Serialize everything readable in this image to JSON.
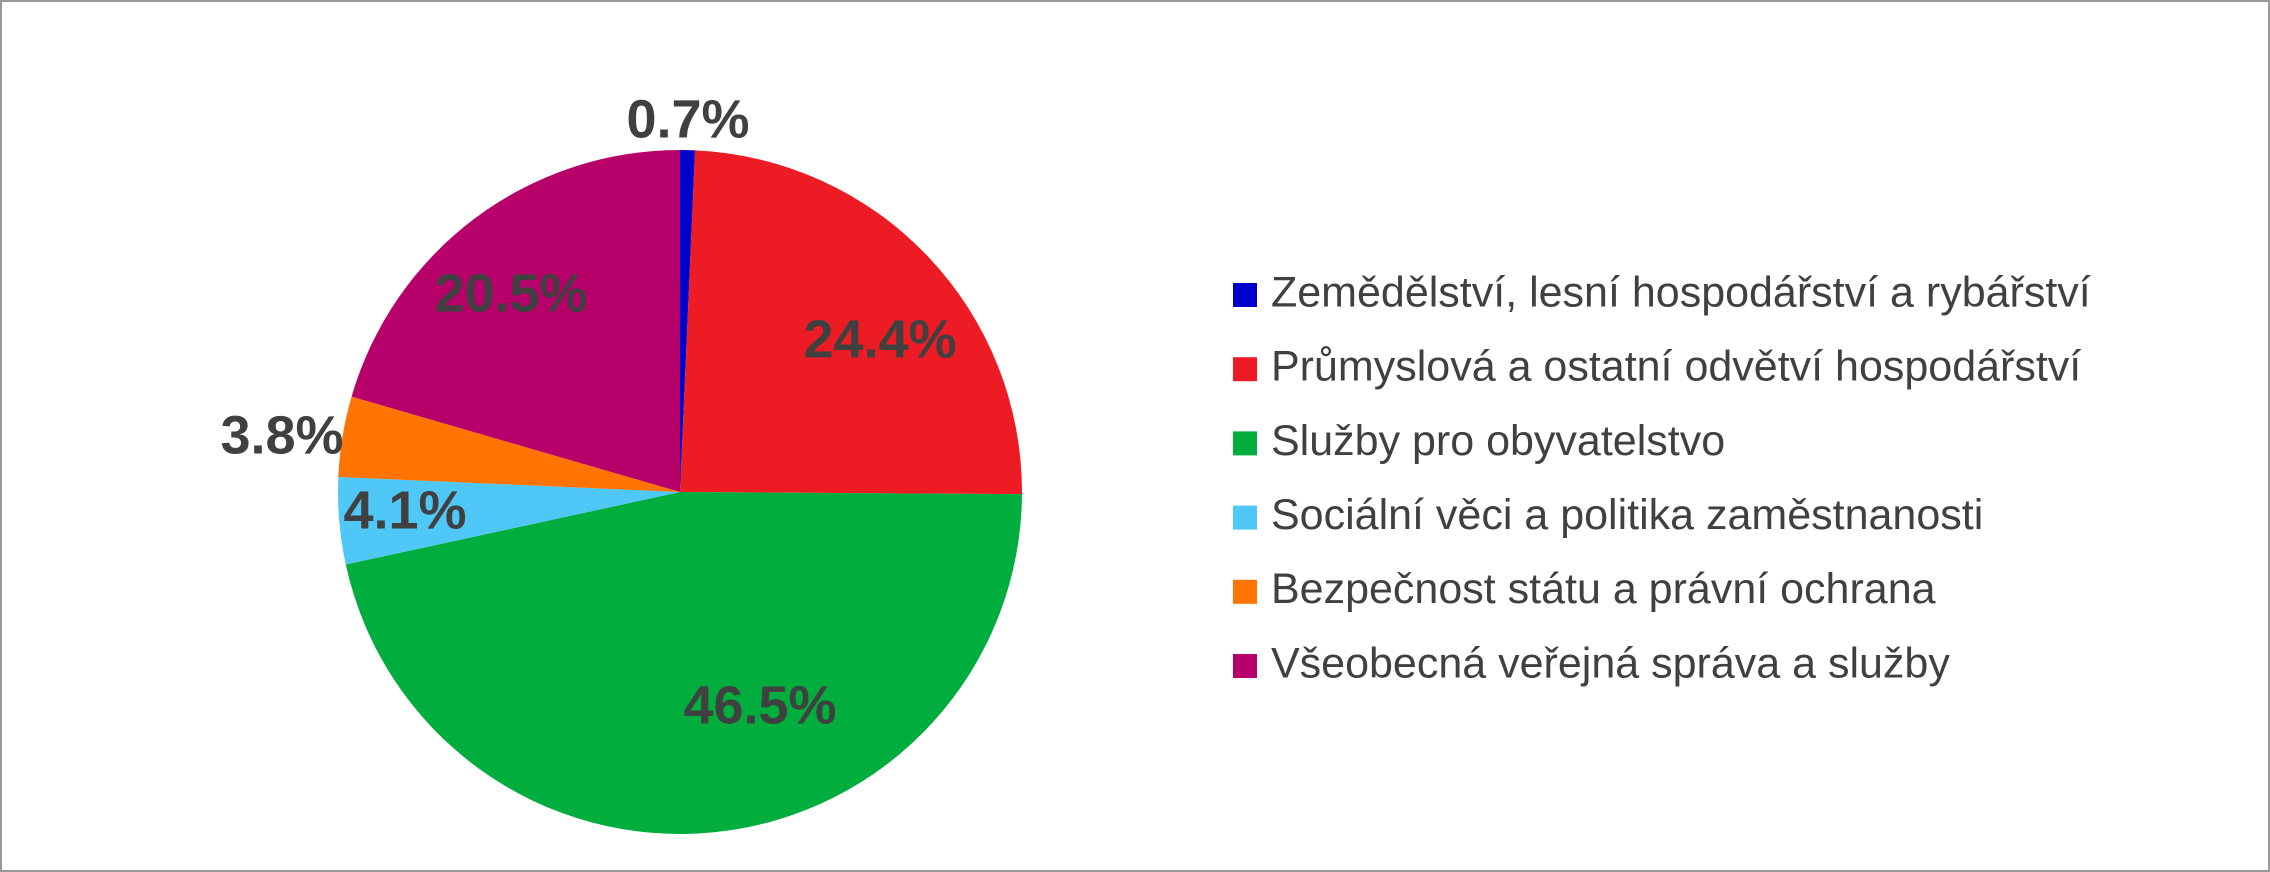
{
  "chart_data": {
    "type": "pie",
    "categories": [
      "Zemědělství, lesní hospodářství a rybářství",
      "Průmyslová a ostatní odvětví hospodářství",
      "Služby pro obyvatelstvo",
      "Sociální věci a politika zaměstnanosti",
      "Bezpečnost státu a právní ochrana",
      "Všeobecná veřejná správa a služby"
    ],
    "values": [
      0.7,
      24.4,
      46.5,
      4.1,
      3.8,
      20.5
    ],
    "value_labels": [
      "0.7%",
      "24.4%",
      "46.5%",
      "4.1%",
      "3.8%",
      "20.5%"
    ],
    "colors": [
      "#0000cc",
      "#ed1c24",
      "#00ad3d",
      "#4fc7f7",
      "#ff7300",
      "#b8006b"
    ],
    "legend": "right"
  }
}
